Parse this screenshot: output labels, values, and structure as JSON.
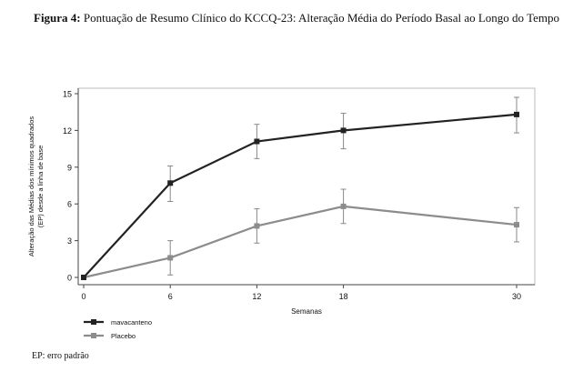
{
  "caption": {
    "label": "Figura 4:",
    "text": "Pontuação de Resumo Clínico do KCCQ-23: Alteração Média do Período Basal ao Longo do Tempo"
  },
  "footnote": "EP: erro padrão",
  "colors": {
    "mavacamten": "#222222",
    "placebo": "#8c8c8c",
    "axis": "#444444"
  },
  "chart_data": {
    "type": "line",
    "title": "",
    "xlabel": "Semanas",
    "ylabel": "Alteração das Médias dos mínimos quadrados (EP) desde a linha de base",
    "ylabel_lines": [
      "Alteração das Médias dos mínimos quadrados",
      "(EP) desde a linha de base"
    ],
    "x": [
      0,
      6,
      12,
      18,
      30
    ],
    "x_ticks": [
      "0",
      "6",
      "12",
      "18",
      "30"
    ],
    "xlim": [
      0,
      31
    ],
    "y_ticks": [
      "0",
      "3",
      "6",
      "9",
      "12",
      "15"
    ],
    "ylim": [
      -0.3,
      15.6
    ],
    "grid": false,
    "legend_position": "bottom-left",
    "series": [
      {
        "name": "mavacanteno",
        "marker": "square",
        "values": [
          0.0,
          7.7,
          11.1,
          12.0,
          13.3
        ],
        "err_low": [
          0.0,
          6.2,
          9.7,
          10.5,
          11.8
        ],
        "err_high": [
          0.0,
          9.1,
          12.5,
          13.4,
          14.7
        ]
      },
      {
        "name": "Placebo",
        "marker": "square",
        "values": [
          0.0,
          1.6,
          4.2,
          5.8,
          4.3
        ],
        "err_low": [
          0.0,
          0.2,
          2.8,
          4.4,
          2.9
        ],
        "err_high": [
          0.0,
          3.0,
          5.6,
          7.2,
          5.7
        ]
      }
    ]
  }
}
